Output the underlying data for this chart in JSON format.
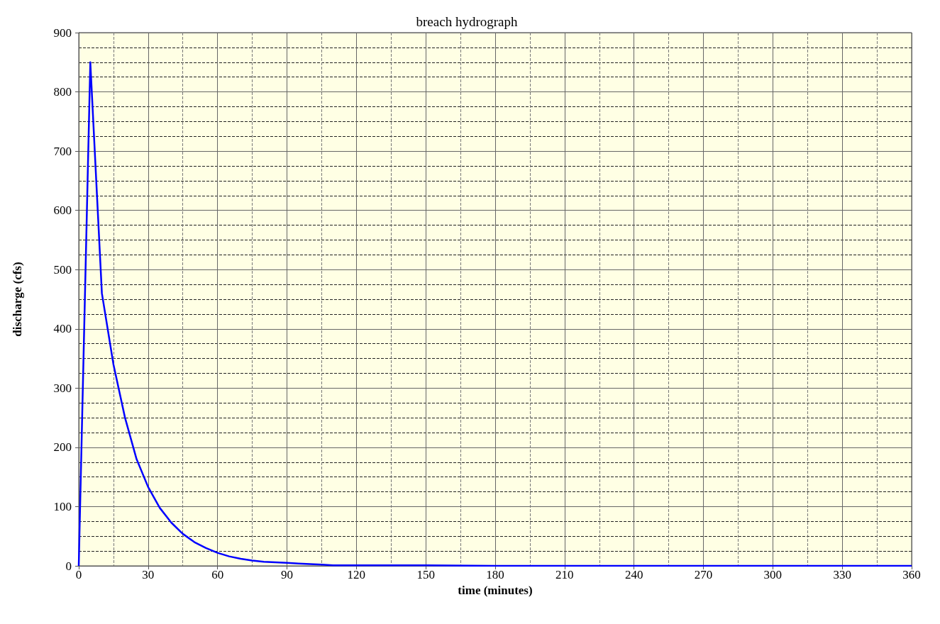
{
  "chart_data": {
    "type": "line",
    "title": "breach hydrograph",
    "xlabel": "time (minutes)",
    "ylabel": "discharge (cfs)",
    "x": [
      0,
      5,
      10,
      15,
      20,
      25,
      30,
      35,
      40,
      45,
      50,
      55,
      60,
      65,
      70,
      75,
      80,
      85,
      90,
      95,
      100,
      105,
      110,
      120,
      130,
      150,
      180,
      240,
      300,
      360
    ],
    "values": [
      0,
      850,
      460,
      340,
      250,
      180,
      133,
      98,
      73,
      54,
      40,
      30,
      22,
      16,
      12,
      9,
      7,
      6,
      5,
      4,
      3,
      2,
      1,
      1,
      1,
      1,
      0,
      0,
      0,
      0
    ],
    "color": "#0000ff",
    "xlim": [
      0,
      360
    ],
    "xticks": [
      0,
      30,
      60,
      90,
      120,
      150,
      180,
      210,
      240,
      270,
      300,
      330,
      360
    ],
    "ylim": [
      0,
      900
    ],
    "yticks": [
      0,
      100,
      200,
      300,
      400,
      500,
      600,
      700,
      800,
      900
    ],
    "grid": true,
    "marker": "none"
  }
}
